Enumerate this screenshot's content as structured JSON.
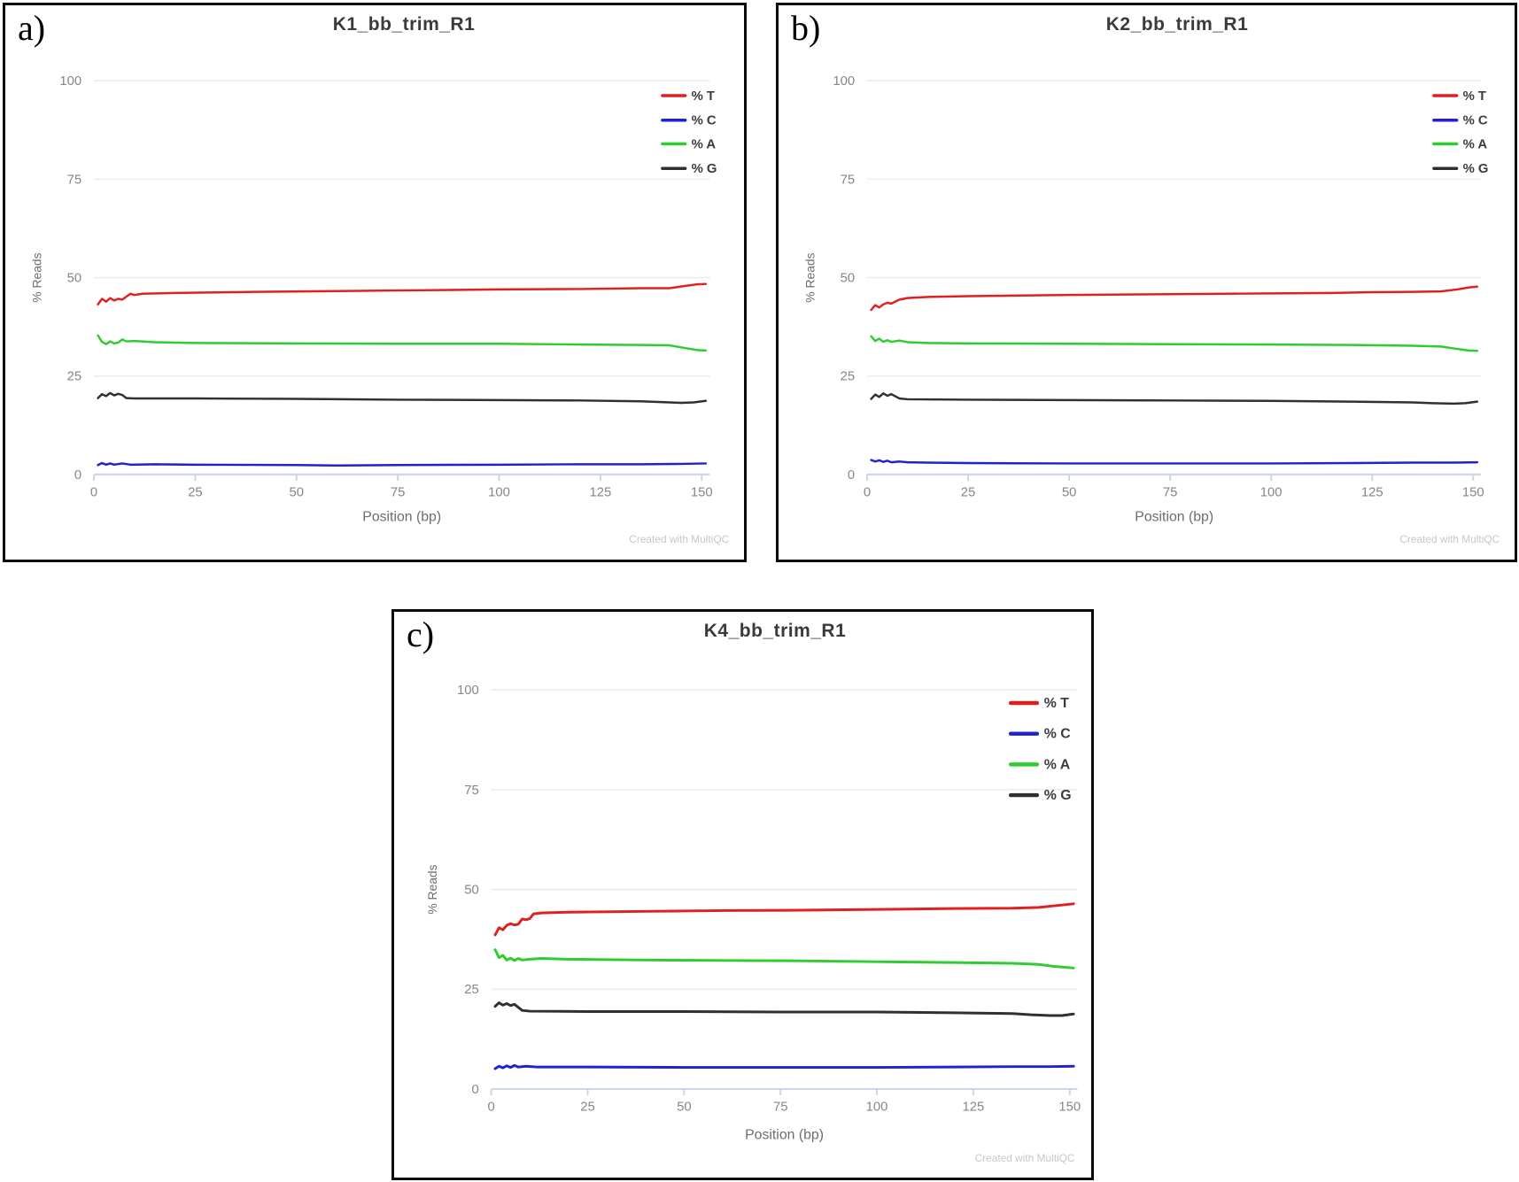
{
  "figure": {
    "background": "#ffffff",
    "panel_border_color": "#0b0b0b"
  },
  "colors": {
    "t": "#e02020",
    "c": "#2121d2",
    "a": "#2ecc2e",
    "g": "#303030",
    "axis_line": "#c9d4ea",
    "gridline": "#ececec",
    "tick_label": "#868686",
    "axis_title": "#6d6d6d",
    "title_text": "#3a3a3a",
    "watermark": "#c7c7c7"
  },
  "chart_data": [
    {
      "type": "line",
      "panel_letter": "a)",
      "title": "K1_bb_trim_R1",
      "xlabel": "Position (bp)",
      "ylabel": "% Reads",
      "watermark": "Created with MultiQC",
      "xlim": [
        0,
        152
      ],
      "ylim": [
        0,
        100
      ],
      "xticks": [
        0,
        25,
        50,
        75,
        100,
        125,
        150
      ],
      "yticks": [
        0,
        25,
        50,
        75,
        100
      ],
      "grid": "horizontal",
      "legend_position": "top-right",
      "bold_legend": false,
      "series": [
        {
          "name": "% T",
          "color_key": "t",
          "points": [
            [
              1,
              43.2
            ],
            [
              2,
              44.6
            ],
            [
              3,
              43.9
            ],
            [
              4,
              44.8
            ],
            [
              5,
              44.2
            ],
            [
              6,
              44.6
            ],
            [
              7,
              44.4
            ],
            [
              9,
              45.9
            ],
            [
              10,
              45.6
            ],
            [
              12,
              45.9
            ],
            [
              20,
              46.1
            ],
            [
              40,
              46.4
            ],
            [
              60,
              46.6
            ],
            [
              80,
              46.8
            ],
            [
              100,
              47.0
            ],
            [
              120,
              47.1
            ],
            [
              135,
              47.3
            ],
            [
              142,
              47.3
            ],
            [
              146,
              47.9
            ],
            [
              149,
              48.3
            ],
            [
              151,
              48.4
            ]
          ]
        },
        {
          "name": "% C",
          "color_key": "c",
          "points": [
            [
              1,
              2.4
            ],
            [
              2,
              2.9
            ],
            [
              3,
              2.5
            ],
            [
              4,
              2.8
            ],
            [
              5,
              2.5
            ],
            [
              7,
              2.8
            ],
            [
              9,
              2.5
            ],
            [
              15,
              2.6
            ],
            [
              25,
              2.5
            ],
            [
              50,
              2.4
            ],
            [
              60,
              2.3
            ],
            [
              75,
              2.4
            ],
            [
              100,
              2.5
            ],
            [
              120,
              2.6
            ],
            [
              135,
              2.6
            ],
            [
              145,
              2.7
            ],
            [
              151,
              2.8
            ]
          ]
        },
        {
          "name": "% A",
          "color_key": "a",
          "points": [
            [
              1,
              35.3
            ],
            [
              2,
              33.7
            ],
            [
              3,
              33.1
            ],
            [
              4,
              33.8
            ],
            [
              5,
              33.3
            ],
            [
              6,
              33.5
            ],
            [
              7,
              34.3
            ],
            [
              8,
              33.8
            ],
            [
              10,
              33.9
            ],
            [
              15,
              33.6
            ],
            [
              25,
              33.4
            ],
            [
              50,
              33.3
            ],
            [
              75,
              33.2
            ],
            [
              100,
              33.2
            ],
            [
              120,
              33.0
            ],
            [
              135,
              32.9
            ],
            [
              142,
              32.8
            ],
            [
              146,
              32.1
            ],
            [
              149,
              31.6
            ],
            [
              151,
              31.5
            ]
          ]
        },
        {
          "name": "% G",
          "color_key": "g",
          "points": [
            [
              1,
              19.4
            ],
            [
              2,
              20.4
            ],
            [
              3,
              19.9
            ],
            [
              4,
              20.7
            ],
            [
              5,
              20.1
            ],
            [
              6,
              20.5
            ],
            [
              7,
              20.2
            ],
            [
              8,
              19.4
            ],
            [
              10,
              19.3
            ],
            [
              25,
              19.3
            ],
            [
              50,
              19.2
            ],
            [
              75,
              19.0
            ],
            [
              100,
              18.9
            ],
            [
              120,
              18.8
            ],
            [
              135,
              18.6
            ],
            [
              140,
              18.4
            ],
            [
              145,
              18.2
            ],
            [
              148,
              18.3
            ],
            [
              151,
              18.7
            ]
          ]
        }
      ]
    },
    {
      "type": "line",
      "panel_letter": "b)",
      "title": "K2_bb_trim_R1",
      "xlabel": "Position (bp)",
      "ylabel": "% Reads",
      "watermark": "Created with MultiQC",
      "xlim": [
        0,
        152
      ],
      "ylim": [
        0,
        100
      ],
      "xticks": [
        0,
        25,
        50,
        75,
        100,
        125,
        150
      ],
      "yticks": [
        0,
        25,
        50,
        75,
        100
      ],
      "grid": "horizontal",
      "legend_position": "top-right",
      "bold_legend": false,
      "series": [
        {
          "name": "% T",
          "color_key": "t",
          "points": [
            [
              1,
              41.8
            ],
            [
              2,
              43.0
            ],
            [
              3,
              42.4
            ],
            [
              4,
              43.2
            ],
            [
              5,
              43.6
            ],
            [
              6,
              43.4
            ],
            [
              8,
              44.4
            ],
            [
              10,
              44.8
            ],
            [
              15,
              45.1
            ],
            [
              25,
              45.3
            ],
            [
              50,
              45.6
            ],
            [
              75,
              45.8
            ],
            [
              100,
              46.0
            ],
            [
              115,
              46.1
            ],
            [
              125,
              46.3
            ],
            [
              135,
              46.4
            ],
            [
              142,
              46.5
            ],
            [
              146,
              47.0
            ],
            [
              149,
              47.5
            ],
            [
              151,
              47.7
            ]
          ]
        },
        {
          "name": "% C",
          "color_key": "c",
          "points": [
            [
              1,
              3.7
            ],
            [
              2,
              3.3
            ],
            [
              3,
              3.6
            ],
            [
              4,
              3.2
            ],
            [
              5,
              3.5
            ],
            [
              6,
              3.1
            ],
            [
              8,
              3.3
            ],
            [
              10,
              3.1
            ],
            [
              15,
              3.0
            ],
            [
              25,
              2.9
            ],
            [
              50,
              2.8
            ],
            [
              75,
              2.8
            ],
            [
              100,
              2.8
            ],
            [
              120,
              2.9
            ],
            [
              135,
              3.0
            ],
            [
              145,
              3.0
            ],
            [
              151,
              3.1
            ]
          ]
        },
        {
          "name": "% A",
          "color_key": "a",
          "points": [
            [
              1,
              35.1
            ],
            [
              2,
              33.9
            ],
            [
              3,
              34.5
            ],
            [
              4,
              33.7
            ],
            [
              5,
              34.1
            ],
            [
              6,
              33.7
            ],
            [
              8,
              34.0
            ],
            [
              10,
              33.6
            ],
            [
              15,
              33.4
            ],
            [
              25,
              33.3
            ],
            [
              50,
              33.2
            ],
            [
              75,
              33.1
            ],
            [
              100,
              33.0
            ],
            [
              120,
              32.9
            ],
            [
              135,
              32.7
            ],
            [
              142,
              32.5
            ],
            [
              146,
              31.9
            ],
            [
              149,
              31.5
            ],
            [
              151,
              31.4
            ]
          ]
        },
        {
          "name": "% G",
          "color_key": "g",
          "points": [
            [
              1,
              19.2
            ],
            [
              2,
              20.3
            ],
            [
              3,
              19.7
            ],
            [
              4,
              20.6
            ],
            [
              5,
              20.0
            ],
            [
              6,
              20.4
            ],
            [
              8,
              19.3
            ],
            [
              10,
              19.1
            ],
            [
              25,
              19.0
            ],
            [
              50,
              18.9
            ],
            [
              75,
              18.8
            ],
            [
              100,
              18.7
            ],
            [
              120,
              18.5
            ],
            [
              135,
              18.3
            ],
            [
              140,
              18.1
            ],
            [
              145,
              18.0
            ],
            [
              148,
              18.1
            ],
            [
              151,
              18.5
            ]
          ]
        }
      ]
    },
    {
      "type": "line",
      "panel_letter": "c)",
      "title": "K4_bb_trim_R1",
      "xlabel": "Position (bp)",
      "ylabel": "% Reads",
      "watermark": "Created with MultiQC",
      "xlim": [
        0,
        152
      ],
      "ylim": [
        0,
        100
      ],
      "xticks": [
        0,
        25,
        50,
        75,
        100,
        125,
        150
      ],
      "yticks": [
        0,
        25,
        50,
        75,
        100
      ],
      "grid": "horizontal",
      "legend_position": "top-right",
      "bold_legend": true,
      "series": [
        {
          "name": "% T",
          "color_key": "t",
          "points": [
            [
              1,
              38.6
            ],
            [
              2,
              40.4
            ],
            [
              3,
              39.9
            ],
            [
              4,
              41.0
            ],
            [
              5,
              41.4
            ],
            [
              6,
              41.1
            ],
            [
              7,
              41.3
            ],
            [
              8,
              42.6
            ],
            [
              9,
              42.4
            ],
            [
              10,
              42.7
            ],
            [
              11,
              43.9
            ],
            [
              13,
              44.1
            ],
            [
              20,
              44.3
            ],
            [
              40,
              44.5
            ],
            [
              60,
              44.7
            ],
            [
              80,
              44.8
            ],
            [
              100,
              45.0
            ],
            [
              120,
              45.2
            ],
            [
              135,
              45.3
            ],
            [
              142,
              45.5
            ],
            [
              146,
              45.9
            ],
            [
              151,
              46.4
            ]
          ]
        },
        {
          "name": "% C",
          "color_key": "c",
          "points": [
            [
              1,
              5.1
            ],
            [
              2,
              5.7
            ],
            [
              3,
              5.3
            ],
            [
              4,
              5.8
            ],
            [
              5,
              5.4
            ],
            [
              6,
              5.9
            ],
            [
              7,
              5.5
            ],
            [
              9,
              5.7
            ],
            [
              12,
              5.5
            ],
            [
              25,
              5.5
            ],
            [
              50,
              5.4
            ],
            [
              75,
              5.4
            ],
            [
              100,
              5.4
            ],
            [
              120,
              5.5
            ],
            [
              135,
              5.6
            ],
            [
              145,
              5.6
            ],
            [
              151,
              5.7
            ]
          ]
        },
        {
          "name": "% A",
          "color_key": "a",
          "points": [
            [
              1,
              34.9
            ],
            [
              2,
              32.9
            ],
            [
              3,
              33.5
            ],
            [
              4,
              32.3
            ],
            [
              5,
              32.8
            ],
            [
              6,
              32.2
            ],
            [
              7,
              32.7
            ],
            [
              8,
              32.3
            ],
            [
              10,
              32.5
            ],
            [
              13,
              32.7
            ],
            [
              20,
              32.5
            ],
            [
              40,
              32.3
            ],
            [
              60,
              32.2
            ],
            [
              80,
              32.1
            ],
            [
              100,
              31.9
            ],
            [
              120,
              31.7
            ],
            [
              135,
              31.5
            ],
            [
              142,
              31.2
            ],
            [
              146,
              30.7
            ],
            [
              151,
              30.3
            ]
          ]
        },
        {
          "name": "% G",
          "color_key": "g",
          "points": [
            [
              1,
              20.7
            ],
            [
              2,
              21.6
            ],
            [
              3,
              21.0
            ],
            [
              4,
              21.4
            ],
            [
              5,
              20.9
            ],
            [
              6,
              21.2
            ],
            [
              8,
              19.7
            ],
            [
              10,
              19.5
            ],
            [
              25,
              19.4
            ],
            [
              50,
              19.4
            ],
            [
              75,
              19.3
            ],
            [
              100,
              19.3
            ],
            [
              120,
              19.1
            ],
            [
              135,
              18.9
            ],
            [
              140,
              18.6
            ],
            [
              145,
              18.4
            ],
            [
              148,
              18.4
            ],
            [
              151,
              18.8
            ]
          ]
        }
      ]
    }
  ]
}
